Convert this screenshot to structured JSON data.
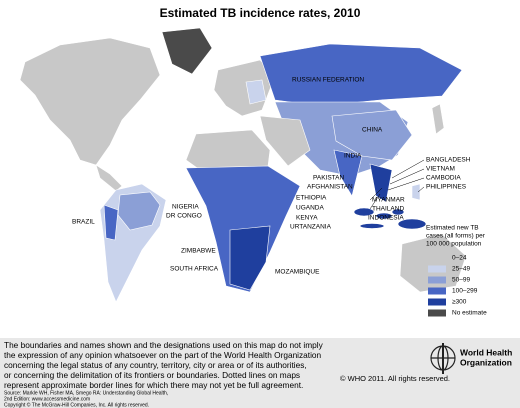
{
  "header": {
    "title": "Estimated TB incidence rates, 2010"
  },
  "map": {
    "labels": [
      "RUSSIAN FEDERATION",
      "CHINA",
      "INDIA",
      "BANGLADESH",
      "VIETNAM",
      "CAMBODIA",
      "PHILIPPINES",
      "PAKISTAN",
      "AFGHANISTAN",
      "ETHIOPIA",
      "NIGERIA",
      "UGANDA",
      "DR CONGO",
      "KENYA",
      "URTANZANIA",
      "MYANMAR",
      "THAILAND",
      "INDONESIA",
      "ZIMBABWE",
      "SOUTH AFRICA",
      "MOZAMBIQUE",
      "BRAZIL"
    ]
  },
  "legend": {
    "title": [
      "Estimated new TB",
      "cases (all forms) per",
      "100 000 population"
    ],
    "items": [
      {
        "label": "0–24",
        "color": "#c8c8c8"
      },
      {
        "label": "25–49",
        "color": "#c9d3ec"
      },
      {
        "label": "50–99",
        "color": "#8b9fd6"
      },
      {
        "label": "100–299",
        "color": "#4866c4"
      },
      {
        "label": "≥300",
        "color": "#1f3f9e"
      },
      {
        "label": "No estimate",
        "color": "#4a4a4a"
      }
    ]
  },
  "footer": {
    "disclaimer": [
      "The boundaries and names shown and the designations used on this map do not imply",
      "the expression of any opinion whatsoever on the part of the World Health Organization",
      "concerning the legal status of any country, territory, city or area or of its authorities,",
      "or concerning the delimitation of its frontiers or boundaries. Dotted lines on maps",
      "represent approximate border lines for which there may not yet be full agreement."
    ],
    "rights": "© WHO 2011. All rights reserved.",
    "source": [
      "Source: Markle WH, Fisher MA, Smego RA: Understanding Global Health,",
      "2nd Edition: www.accessmedicine.com",
      "Copyright © The McGraw-Hill Companies, Inc. All rights reserved."
    ],
    "organization": [
      "World Health",
      "Organization"
    ]
  }
}
